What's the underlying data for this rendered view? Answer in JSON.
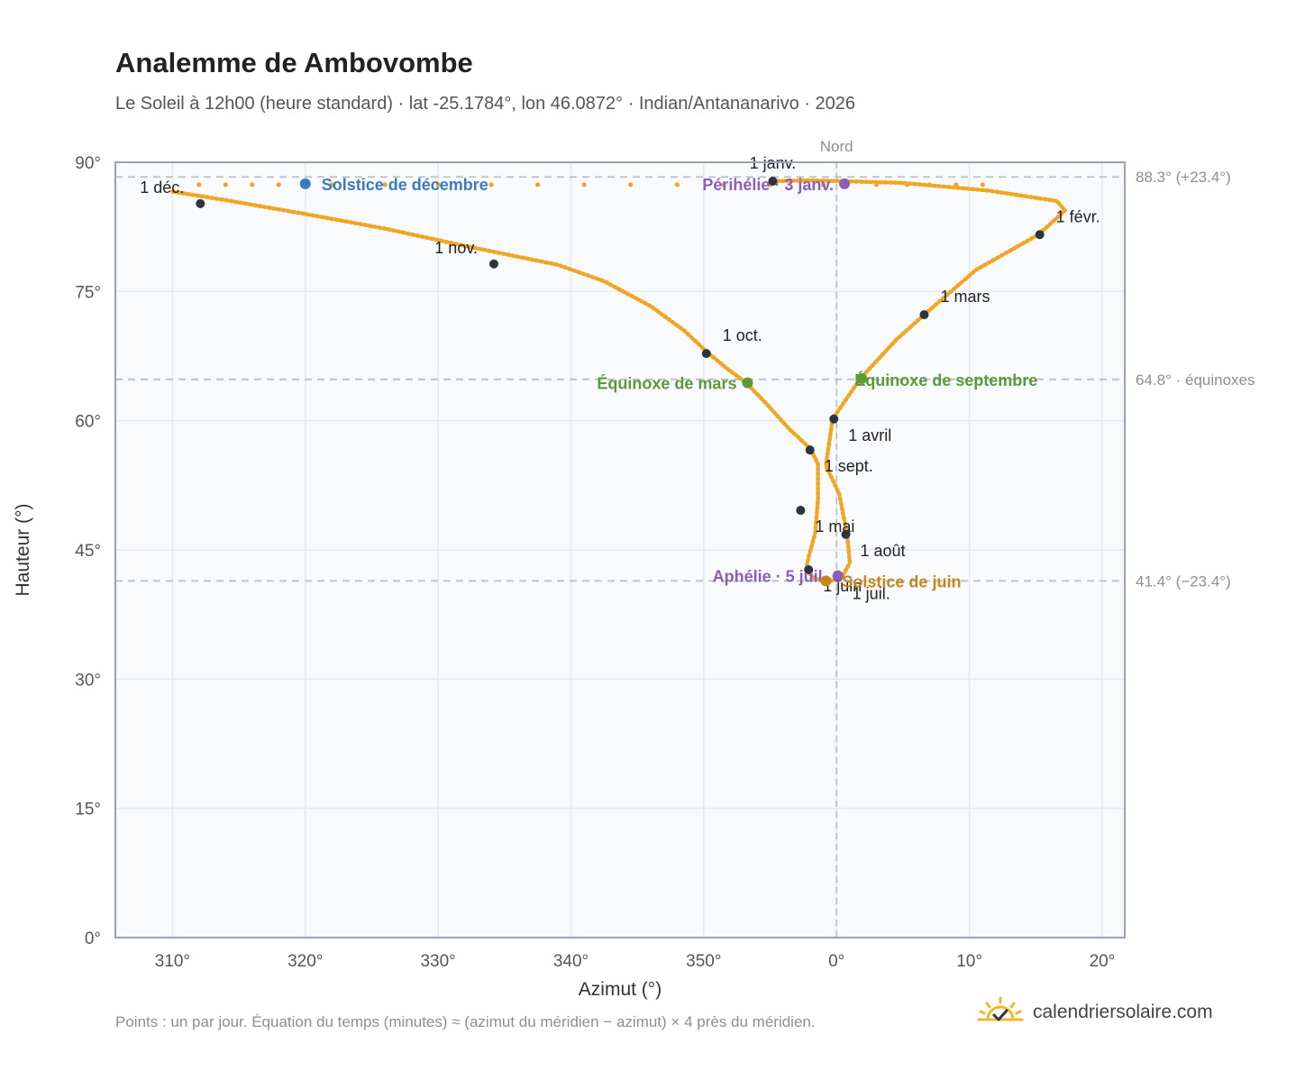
{
  "title": "Analemme de Ambovombe",
  "subtitle": "Le Soleil à 12h00 (heure standard) · lat -25.1784°, lon 46.0872° · Indian/Antananarivo · 2026",
  "footnote": "Points : un par jour. Équation du temps (minutes) ≈ (azimut du méridien − azimut) × 4 près du méridien.",
  "brand": {
    "name": "calendriersolaire.com",
    "icon": "sun-check-icon"
  },
  "colors": {
    "curve": "#f0a623",
    "month_marker": "#2d3440",
    "solstice_december": "#3a7bbf",
    "solstice_june": "#c8861a",
    "equinox": "#5a9a3a",
    "apsis": "#8b5fb8",
    "grid": "#e5e8ee",
    "plot_bg": "#f8fafc",
    "axis": "#9aa3b2",
    "reference": "#b8c0ca"
  },
  "chart_data": {
    "type": "scatter",
    "xlabel": "Azimut (°)",
    "ylabel": "Hauteur (°)",
    "xlim": [
      -54.3,
      21.7
    ],
    "ylim": [
      0,
      90
    ],
    "grid": true,
    "x_ticks": [
      {
        "value": -50,
        "label": "310°"
      },
      {
        "value": -40,
        "label": "320°"
      },
      {
        "value": -30,
        "label": "330°"
      },
      {
        "value": -20,
        "label": "340°"
      },
      {
        "value": -10,
        "label": "350°"
      },
      {
        "value": 0,
        "label": "0°"
      },
      {
        "value": 10,
        "label": "10°"
      },
      {
        "value": 20,
        "label": "20°"
      }
    ],
    "y_ticks": [
      {
        "value": 0,
        "label": "0°"
      },
      {
        "value": 15,
        "label": "15°"
      },
      {
        "value": 30,
        "label": "30°"
      },
      {
        "value": 45,
        "label": "45°"
      },
      {
        "value": 60,
        "label": "60°"
      },
      {
        "value": 75,
        "label": "75°"
      },
      {
        "value": 90,
        "label": "90°"
      }
    ],
    "meridian": {
      "x": 0,
      "label": "Nord"
    },
    "reference_lines": [
      {
        "y": 88.3,
        "label": "88.3° (+23.4°)"
      },
      {
        "y": 64.8,
        "label": "64.8° · équinoxes"
      },
      {
        "y": 41.4,
        "label": "41.4° (−23.4°)"
      }
    ],
    "analemma_path": [
      [
        -50.0,
        86.6
      ],
      [
        -46.0,
        85.6
      ],
      [
        -40.0,
        84.0
      ],
      [
        -34.0,
        82.3
      ],
      [
        -28.0,
        80.3
      ],
      [
        -21.0,
        78.1
      ],
      [
        -17.5,
        76.2
      ],
      [
        -14.0,
        73.3
      ],
      [
        -11.5,
        70.5
      ],
      [
        -9.7,
        67.9
      ],
      [
        -8.2,
        66.0
      ],
      [
        -6.8,
        64.4
      ],
      [
        -5.3,
        62.0
      ],
      [
        -3.6,
        59.1
      ],
      [
        -2.0,
        56.8
      ],
      [
        -1.4,
        55.0
      ],
      [
        -1.4,
        50.8
      ],
      [
        -1.6,
        47.0
      ],
      [
        -2.1,
        44.2
      ],
      [
        -2.3,
        42.7
      ],
      [
        -1.7,
        41.7
      ],
      [
        -0.7,
        41.3
      ],
      [
        0.4,
        41.8
      ],
      [
        1.0,
        43.5
      ],
      [
        0.8,
        46.8
      ],
      [
        0.2,
        51.5
      ],
      [
        -0.8,
        54.8
      ],
      [
        -0.3,
        60.2
      ],
      [
        1.8,
        64.9
      ],
      [
        4.5,
        69.4
      ],
      [
        6.6,
        72.3
      ],
      [
        10.5,
        77.5
      ],
      [
        15.2,
        81.6
      ],
      [
        17.2,
        84.4
      ],
      [
        16.6,
        85.5
      ],
      [
        11.5,
        86.7
      ],
      [
        5.0,
        87.6
      ],
      [
        0.6,
        87.8
      ],
      [
        -2.0,
        87.9
      ],
      [
        -5.0,
        87.8
      ]
    ],
    "sparse_points_x": [
      -48.0,
      -46.0,
      -44.0,
      -42.0,
      -38.0,
      -34.0,
      -30.0,
      -26.0,
      -22.5,
      -19.0,
      -15.5,
      -12.0,
      -8.5,
      -5.0,
      -1.0,
      3.0,
      5.3,
      7.0,
      9.0,
      11.0
    ],
    "sparse_points_y": 87.4,
    "months": [
      {
        "label": "1 janv.",
        "x": -4.8,
        "y": 87.8,
        "label_pos": "above"
      },
      {
        "label": "1 févr.",
        "x": 15.3,
        "y": 81.6,
        "label_pos": "above-right"
      },
      {
        "label": "1 mars",
        "x": 6.6,
        "y": 72.3,
        "label_pos": "above-right"
      },
      {
        "label": "1 avril",
        "x": -0.2,
        "y": 60.2,
        "label_pos": "below-right"
      },
      {
        "label": "1 mai",
        "x": -2.7,
        "y": 49.6,
        "label_pos": "below-right"
      },
      {
        "label": "1 juin",
        "x": -2.1,
        "y": 42.7,
        "label_pos": "below-right"
      },
      {
        "label": "1 juil.",
        "x": 0.1,
        "y": 41.8,
        "label_pos": "below-right"
      },
      {
        "label": "1 août",
        "x": 0.7,
        "y": 46.8,
        "label_pos": "below-right"
      },
      {
        "label": "1 sept.",
        "x": -2.0,
        "y": 56.6,
        "label_pos": "below-right"
      },
      {
        "label": "1 oct.",
        "x": -9.8,
        "y": 67.8,
        "label_pos": "above-right"
      },
      {
        "label": "1 nov.",
        "x": -25.8,
        "y": 78.2,
        "label_pos": "above-left"
      },
      {
        "label": "1 déc.",
        "x": -47.9,
        "y": 85.2,
        "label_pos": "above-left"
      }
    ],
    "events": [
      {
        "label": "Solstice de décembre",
        "x": -40.0,
        "y": 87.5,
        "color": "#3a7bbf",
        "label_pos": "right"
      },
      {
        "label": "Périhélie · 3 janv.",
        "x": 0.6,
        "y": 87.5,
        "color": "#8b5fb8",
        "label_pos": "left"
      },
      {
        "label": "Équinoxe de mars",
        "x": -6.7,
        "y": 64.4,
        "color": "#5a9a3a",
        "label_pos": "left"
      },
      {
        "label": "Équinoxe de septembre",
        "x": 1.9,
        "y": 64.9,
        "color": "#5a9a3a",
        "label_pos": "below-left"
      },
      {
        "label": "Aphélie · 5 juil.",
        "x": 0.1,
        "y": 42.0,
        "color": "#8b5fb8",
        "label_pos": "left"
      },
      {
        "label": "Solstice de juin",
        "x": -0.8,
        "y": 41.4,
        "color": "#c8861a",
        "label_pos": "right"
      }
    ]
  }
}
